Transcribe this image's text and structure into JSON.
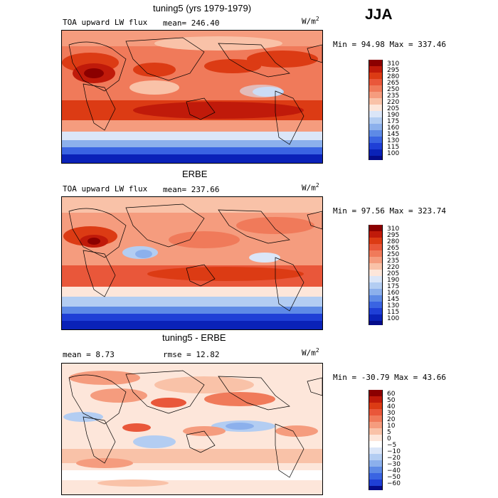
{
  "season": "JJA",
  "panels": [
    {
      "title": "tuning5 (yrs 1979-1979)",
      "variable": "TOA upward LW flux",
      "mean_text": "mean=  246.40",
      "rmse_text": "",
      "units": "W/m",
      "units_sup": "2",
      "minmax": "Min =  94.98 Max = 337.46",
      "levels": [
        "310",
        "295",
        "280",
        "265",
        "250",
        "235",
        "220",
        "205",
        "190",
        "175",
        "160",
        "145",
        "130",
        "115",
        "100"
      ],
      "colors": [
        "#8b0000",
        "#c01a0a",
        "#dc3b14",
        "#e9573a",
        "#f07a5a",
        "#f59c7e",
        "#f9c2a8",
        "#fde6da",
        "#dbe6f8",
        "#b3cdf2",
        "#8cb0ec",
        "#5e8ae6",
        "#3a64e2",
        "#1f3fd6",
        "#0a22b8",
        "#050c8a"
      ]
    },
    {
      "title": "ERBE",
      "variable": "TOA upward LW flux",
      "mean_text": "mean=  237.66",
      "rmse_text": "",
      "units": "W/m",
      "units_sup": "2",
      "minmax": "Min =  97.56 Max = 323.74",
      "levels": [
        "310",
        "295",
        "280",
        "265",
        "250",
        "235",
        "220",
        "205",
        "190",
        "175",
        "160",
        "145",
        "130",
        "115",
        "100"
      ],
      "colors": [
        "#8b0000",
        "#c01a0a",
        "#dc3b14",
        "#e9573a",
        "#f07a5a",
        "#f59c7e",
        "#f9c2a8",
        "#fde6da",
        "#dbe6f8",
        "#b3cdf2",
        "#8cb0ec",
        "#5e8ae6",
        "#3a64e2",
        "#1f3fd6",
        "#0a22b8",
        "#050c8a"
      ]
    },
    {
      "title": "tuning5 - ERBE",
      "variable": "",
      "mean_text": "mean =   8.73",
      "rmse_text": "rmse =  12.82",
      "units": "W/m",
      "units_sup": "2",
      "minmax": "Min = -30.79 Max =  43.66",
      "levels": [
        "60",
        "50",
        "40",
        "30",
        "20",
        "10",
        "5",
        "0",
        "−5",
        "−10",
        "−20",
        "−30",
        "−40",
        "−50",
        "−60"
      ],
      "colors": [
        "#8b0000",
        "#c01a0a",
        "#dc3b14",
        "#e9573a",
        "#f07a5a",
        "#f59c7e",
        "#f9c2a8",
        "#fde6da",
        "#ffffff",
        "#dbe6f8",
        "#b3cdf2",
        "#8cb0ec",
        "#5e8ae6",
        "#3a64e2",
        "#1f3fd6",
        "#050c8a"
      ]
    }
  ]
}
